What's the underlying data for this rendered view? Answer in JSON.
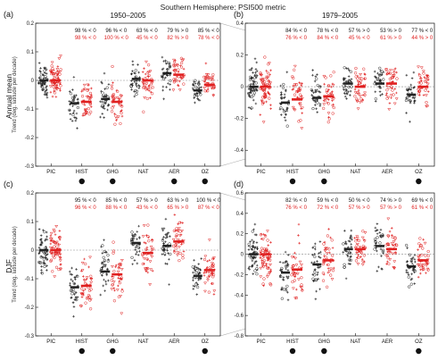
{
  "figure": {
    "title": "Southern Hemisphere: PSI500 metric",
    "row_labels": [
      "Annual mean",
      "DJF"
    ],
    "y_label": "Trend (deg. latitude per decade)"
  },
  "colors": {
    "models": "#222222",
    "reanalysis": "#e02020",
    "zero_line": "#888888",
    "connector": "#aaaaaa"
  },
  "chart_data": [
    {
      "type": "scatter",
      "panel": "(a)",
      "period": "1950–2005",
      "ylabel": "Trend (deg. latitude per decade)",
      "ylim": [
        -0.3,
        0.2
      ],
      "yticks": [
        "-0.3",
        "-0.2",
        "-0.1",
        "0",
        "0.1",
        "0.2"
      ],
      "categories": [
        "PIC",
        "HIST",
        "GHG",
        "NAT",
        "AER",
        "OZ"
      ],
      "pct_black": [
        "",
        "98 % < 0",
        "96 % < 0",
        "63 % < 0",
        "79 % > 0",
        "85 % < 0"
      ],
      "pct_red": [
        "",
        "98 % < 0",
        "100 % < 0",
        "45 % < 0",
        "82 % > 0",
        "78 % < 0"
      ],
      "means_black": [
        0.0,
        -0.08,
        -0.065,
        0.005,
        0.025,
        -0.035
      ],
      "means_red": [
        0.0,
        -0.075,
        -0.075,
        0.0,
        0.02,
        -0.015
      ],
      "spread": [
        0.05,
        0.06,
        0.05,
        0.05,
        0.045,
        0.035
      ],
      "significant": [
        false,
        true,
        true,
        false,
        true,
        true
      ]
    },
    {
      "type": "scatter",
      "panel": "(b)",
      "period": "1979–2005",
      "ylabel": "",
      "ylim": [
        -0.5,
        0.4
      ],
      "yticks": [
        "-0.4",
        "-0.2",
        "0",
        "0.2",
        "0.4"
      ],
      "categories": [
        "PIC",
        "HIST",
        "GHG",
        "NAT",
        "AER",
        "OZ"
      ],
      "pct_black": [
        "",
        "84 % < 0",
        "78 % < 0",
        "57 % > 0",
        "53 % > 0",
        "77 % < 0"
      ],
      "pct_red": [
        "",
        "76 % < 0",
        "84 % < 0",
        "45 % < 0",
        "61 % > 0",
        "44 % > 0"
      ],
      "means_black": [
        0.0,
        -0.1,
        -0.07,
        0.02,
        0.02,
        -0.05
      ],
      "means_red": [
        0.0,
        -0.08,
        -0.06,
        0.0,
        0.02,
        0.0
      ],
      "spread": [
        0.12,
        0.12,
        0.12,
        0.1,
        0.1,
        0.1
      ],
      "significant": [
        false,
        true,
        true,
        false,
        false,
        true
      ]
    },
    {
      "type": "scatter",
      "panel": "(c)",
      "period": "",
      "ylabel": "Trend (deg. latitude per decade)",
      "ylim": [
        -0.3,
        0.2
      ],
      "yticks": [
        "-0.3",
        "-0.2",
        "-0.1",
        "0",
        "0.1",
        "0.2"
      ],
      "categories": [
        "PIC",
        "HIST",
        "GHG",
        "NAT",
        "AER",
        "OZ"
      ],
      "pct_black": [
        "",
        "95 % < 0",
        "85 % < 0",
        "57 % > 0",
        "63 % > 0",
        "100 % < 0"
      ],
      "pct_red": [
        "",
        "96 % < 0",
        "88 % < 0",
        "43 % < 0",
        "65 % > 0",
        "87 % < 0"
      ],
      "means_black": [
        0.0,
        -0.13,
        -0.075,
        0.025,
        0.015,
        -0.09
      ],
      "means_red": [
        0.0,
        -0.125,
        -0.085,
        -0.01,
        0.03,
        -0.07
      ],
      "spread": [
        0.06,
        0.07,
        0.07,
        0.06,
        0.06,
        0.05
      ],
      "significant": [
        false,
        true,
        true,
        false,
        false,
        true
      ]
    },
    {
      "type": "scatter",
      "panel": "(d)",
      "period": "",
      "ylabel": "",
      "ylim": [
        -0.8,
        0.6
      ],
      "yticks": [
        "-0.8",
        "-0.6",
        "-0.4",
        "-0.2",
        "0",
        "0.2",
        "0.4",
        "0.6"
      ],
      "categories": [
        "PIC",
        "HIST",
        "GHG",
        "NAT",
        "AER",
        "OZ"
      ],
      "pct_black": [
        "",
        "82 % < 0",
        "59 % < 0",
        "50 % < 0",
        "74 % > 0",
        "69 % < 0"
      ],
      "pct_red": [
        "",
        "76 % < 0",
        "72 % < 0",
        "57 % > 0",
        "57 % > 0",
        "61 % < 0"
      ],
      "means_black": [
        0.0,
        -0.18,
        -0.1,
        0.05,
        0.08,
        -0.12
      ],
      "means_red": [
        0.0,
        -0.15,
        -0.06,
        0.05,
        0.05,
        -0.06
      ],
      "spread": [
        0.18,
        0.2,
        0.18,
        0.16,
        0.16,
        0.15
      ],
      "significant": [
        false,
        true,
        true,
        false,
        false,
        true
      ]
    }
  ]
}
